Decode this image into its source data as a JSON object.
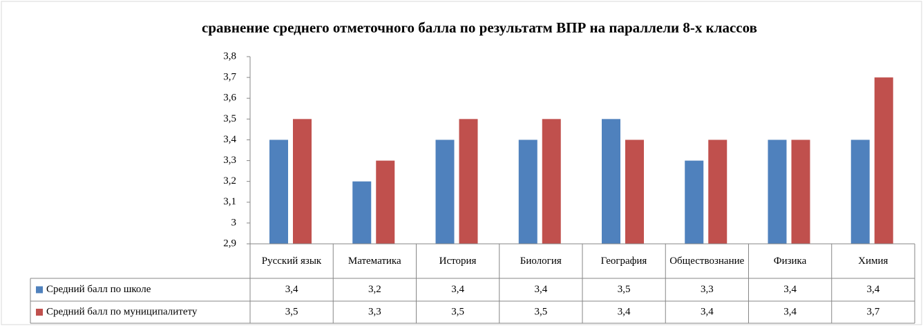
{
  "chart_data": {
    "type": "bar",
    "title": "сравнение среднего отметочного  балла по результатм  ВПР на параллели 8-х классов",
    "categories": [
      "Русский язык",
      "Математика",
      "История",
      "Биология",
      "География",
      "Обществознание",
      "Физика",
      "Химия"
    ],
    "series": [
      {
        "name": "Средний балл по школе",
        "color": "#4f81bd",
        "values": [
          3.4,
          3.2,
          3.4,
          3.4,
          3.5,
          3.3,
          3.4,
          3.4
        ],
        "value_labels": [
          "3,4",
          "3,2",
          "3,4",
          "3,4",
          "3,5",
          "3,3",
          "3,4",
          "3,4"
        ]
      },
      {
        "name": "Средний балл по муниципалитету",
        "color": "#c0504d",
        "values": [
          3.5,
          3.3,
          3.5,
          3.5,
          3.4,
          3.4,
          3.4,
          3.7
        ],
        "value_labels": [
          "3,5",
          "3,3",
          "3,5",
          "3,5",
          "3,4",
          "3,4",
          "3,4",
          "3,7"
        ]
      }
    ],
    "ylim": [
      2.9,
      3.8
    ],
    "yticks": [
      {
        "value": 2.9,
        "label": "2,9"
      },
      3,
      {
        "value": 3.1,
        "label": "3,1"
      },
      {
        "value": 3.2,
        "label": "3,2"
      },
      {
        "value": 3.3,
        "label": "3,3"
      },
      {
        "value": 3.4,
        "label": "3,4"
      },
      {
        "value": 3.5,
        "label": "3,5"
      },
      {
        "value": 3.6,
        "label": "3,6"
      },
      {
        "value": 3.7,
        "label": "3,7"
      },
      {
        "value": 3.8,
        "label": "3,8"
      }
    ],
    "grid": false
  }
}
